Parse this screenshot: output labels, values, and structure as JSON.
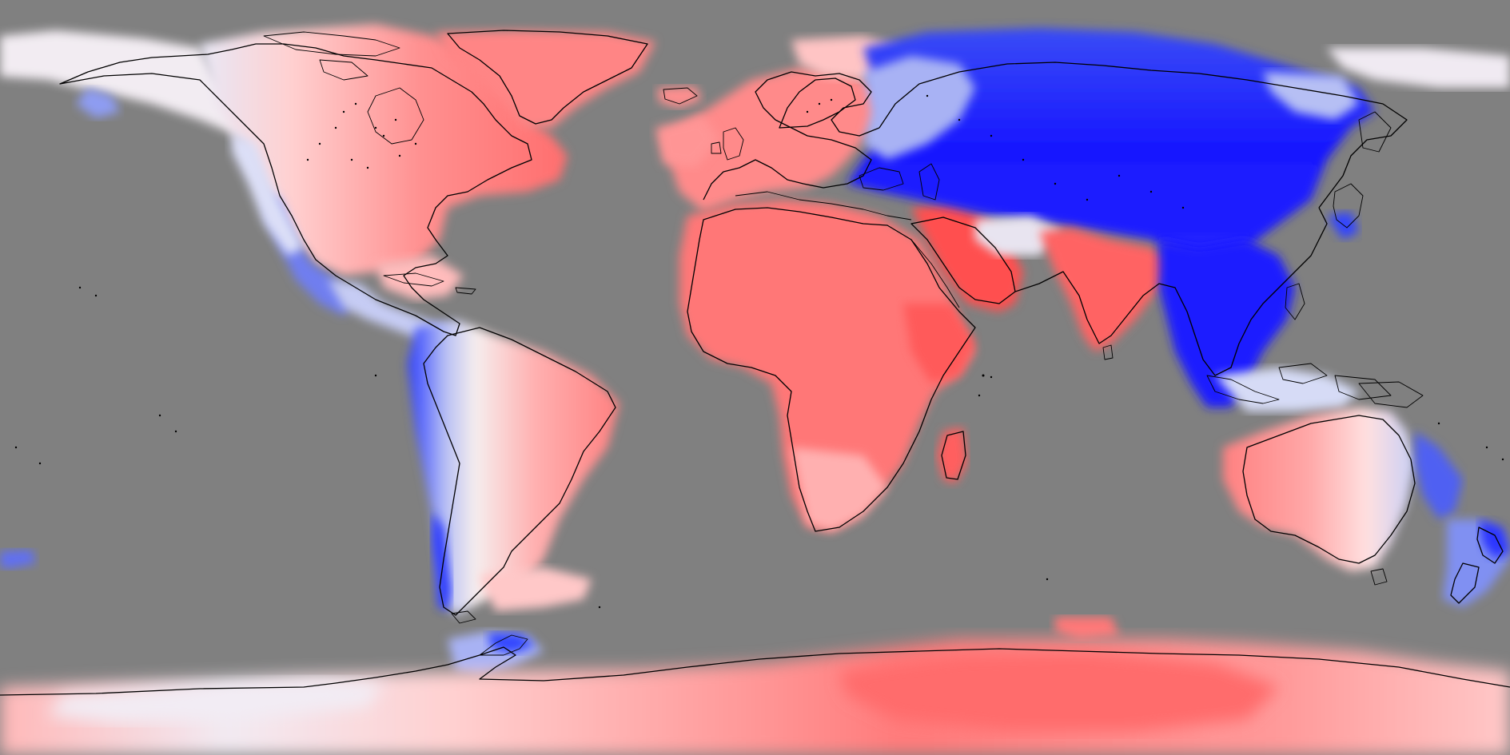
{
  "map": {
    "projection": "equirectangular",
    "background_color": "#808080",
    "coastline_color": "#000000",
    "colormap": {
      "deep_blue": "#1414ff",
      "blue": "#4a5cf0",
      "light_blue": "#b9c2f5",
      "white": "#f4eeee",
      "light_red": "#ffb3b3",
      "red": "#ff7f7f",
      "deep_red": "#ff4a4a"
    },
    "regions": [
      {
        "id": "greenland",
        "sign": "warm",
        "intensity": "medium"
      },
      {
        "id": "canada",
        "sign": "warm",
        "intensity": "medium"
      },
      {
        "id": "alaska",
        "sign": "neutral",
        "intensity": "low"
      },
      {
        "id": "usa-west",
        "sign": "mixed",
        "intensity": "low"
      },
      {
        "id": "usa-east",
        "sign": "warm",
        "intensity": "medium"
      },
      {
        "id": "central-america",
        "sign": "cool",
        "intensity": "low"
      },
      {
        "id": "south-america-andes",
        "sign": "cool",
        "intensity": "high"
      },
      {
        "id": "south-america-east",
        "sign": "warm",
        "intensity": "medium"
      },
      {
        "id": "europe",
        "sign": "warm",
        "intensity": "medium"
      },
      {
        "id": "north-africa",
        "sign": "warm",
        "intensity": "medium"
      },
      {
        "id": "arabia",
        "sign": "warm",
        "intensity": "high"
      },
      {
        "id": "southern-africa",
        "sign": "warm",
        "intensity": "medium"
      },
      {
        "id": "madagascar",
        "sign": "warm",
        "intensity": "high"
      },
      {
        "id": "siberia",
        "sign": "cool",
        "intensity": "high"
      },
      {
        "id": "central-asia",
        "sign": "cool",
        "intensity": "high"
      },
      {
        "id": "india",
        "sign": "warm",
        "intensity": "high"
      },
      {
        "id": "southeast-asia",
        "sign": "cool",
        "intensity": "high"
      },
      {
        "id": "australia",
        "sign": "warm",
        "intensity": "low"
      },
      {
        "id": "new-zealand",
        "sign": "cool",
        "intensity": "high"
      },
      {
        "id": "antarctica",
        "sign": "warm",
        "intensity": "medium"
      }
    ]
  }
}
